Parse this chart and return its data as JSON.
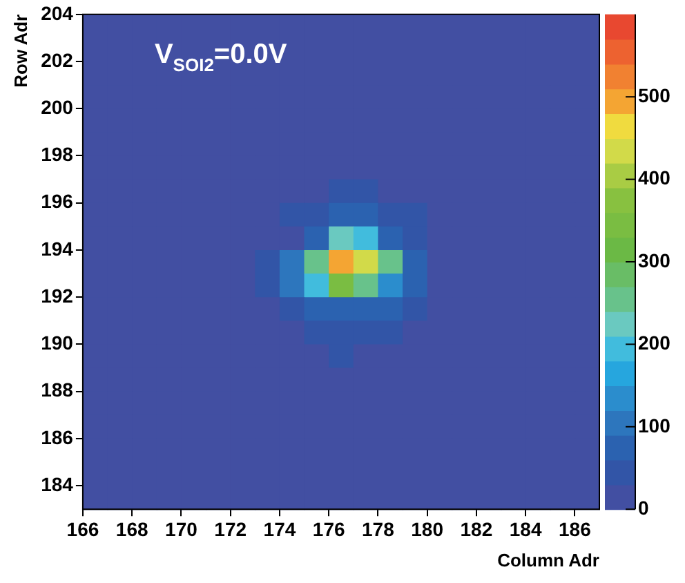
{
  "chart_data": {
    "type": "heatmap",
    "xlabel": "Column Adr",
    "ylabel": "Row Adr",
    "annotations": [
      "V$_{SOI2}$=0.0V"
    ],
    "x": [
      166.5,
      167.5,
      168.5,
      169.5,
      170.5,
      171.5,
      172.5,
      173.5,
      174.5,
      175.5,
      176.5,
      177.5,
      178.5,
      179.5,
      180.5,
      181.5,
      182.5,
      183.5,
      184.5,
      185.5,
      186.5
    ],
    "y": [
      203.5,
      202.5,
      201.5,
      200.5,
      199.5,
      198.5,
      197.5,
      196.5,
      195.5,
      194.5,
      193.5,
      192.5,
      191.5,
      190.5,
      189.5,
      188.5,
      187.5,
      186.5,
      185.5,
      184.5,
      183.5
    ],
    "xlim": [
      166,
      187
    ],
    "xticks": [
      166,
      168,
      170,
      172,
      174,
      176,
      178,
      180,
      182,
      184,
      186
    ],
    "ylim": [
      183,
      204
    ],
    "yticks": [
      184,
      186,
      188,
      190,
      192,
      194,
      196,
      198,
      200,
      202,
      204
    ],
    "clim": [
      0,
      600
    ],
    "cticks": [
      0,
      100,
      200,
      300,
      400,
      500
    ],
    "cells": [
      [
        0,
        0,
        0,
        0,
        0,
        0,
        0,
        0,
        0,
        0,
        0,
        0,
        0,
        0,
        0,
        0,
        0,
        0,
        0,
        0,
        0
      ],
      [
        0,
        0,
        0,
        0,
        0,
        0,
        0,
        0,
        0,
        0,
        0,
        0,
        0,
        0,
        0,
        0,
        0,
        0,
        0,
        0,
        0
      ],
      [
        0,
        0,
        0,
        0,
        0,
        0,
        0,
        0,
        0,
        0,
        0,
        0,
        0,
        0,
        0,
        0,
        0,
        0,
        0,
        0,
        0
      ],
      [
        0,
        0,
        0,
        0,
        0,
        0,
        0,
        0,
        0,
        0,
        0,
        0,
        0,
        0,
        0,
        0,
        0,
        0,
        0,
        0,
        0
      ],
      [
        0,
        0,
        0,
        0,
        0,
        0,
        0,
        0,
        0,
        0,
        0,
        0,
        0,
        0,
        0,
        0,
        0,
        0,
        0,
        0,
        0
      ],
      [
        0,
        0,
        0,
        0,
        0,
        0,
        0,
        0,
        0,
        0,
        0,
        0,
        0,
        0,
        0,
        0,
        0,
        0,
        0,
        0,
        0
      ],
      [
        0,
        0,
        0,
        0,
        0,
        0,
        0,
        0,
        0,
        0,
        0,
        0,
        0,
        0,
        0,
        0,
        0,
        0,
        0,
        0,
        0
      ],
      [
        0,
        0,
        0,
        0,
        0,
        0,
        0,
        0,
        0,
        0,
        40,
        40,
        0,
        0,
        0,
        0,
        0,
        0,
        0,
        0,
        0
      ],
      [
        0,
        0,
        0,
        0,
        0,
        0,
        0,
        0,
        40,
        40,
        80,
        80,
        40,
        40,
        0,
        0,
        0,
        0,
        0,
        0,
        0
      ],
      [
        0,
        0,
        0,
        0,
        0,
        0,
        0,
        0,
        0,
        80,
        220,
        180,
        80,
        50,
        0,
        0,
        0,
        0,
        0,
        0,
        0
      ],
      [
        0,
        0,
        0,
        0,
        0,
        0,
        0,
        40,
        90,
        240,
        500,
        430,
        260,
        80,
        0,
        0,
        0,
        0,
        0,
        0,
        0
      ],
      [
        0,
        0,
        0,
        0,
        0,
        0,
        0,
        40,
        90,
        180,
        340,
        250,
        140,
        70,
        0,
        0,
        0,
        0,
        0,
        0,
        0
      ],
      [
        0,
        0,
        0,
        0,
        0,
        0,
        0,
        0,
        40,
        80,
        60,
        60,
        80,
        40,
        0,
        0,
        0,
        0,
        0,
        0,
        0
      ],
      [
        0,
        0,
        0,
        0,
        0,
        0,
        0,
        0,
        0,
        40,
        40,
        40,
        40,
        0,
        0,
        0,
        0,
        0,
        0,
        0,
        0
      ],
      [
        0,
        0,
        0,
        0,
        0,
        0,
        0,
        0,
        0,
        0,
        40,
        0,
        0,
        0,
        0,
        0,
        0,
        0,
        0,
        0,
        0
      ],
      [
        0,
        0,
        0,
        0,
        0,
        0,
        0,
        0,
        0,
        0,
        0,
        0,
        0,
        0,
        0,
        0,
        0,
        0,
        0,
        0,
        0
      ],
      [
        0,
        0,
        0,
        0,
        0,
        0,
        0,
        0,
        0,
        0,
        0,
        0,
        0,
        0,
        0,
        0,
        0,
        0,
        0,
        0,
        0
      ],
      [
        0,
        0,
        0,
        0,
        0,
        0,
        0,
        0,
        0,
        0,
        0,
        0,
        0,
        0,
        0,
        0,
        0,
        0,
        0,
        0,
        0
      ],
      [
        0,
        0,
        0,
        0,
        0,
        0,
        0,
        0,
        0,
        0,
        0,
        0,
        0,
        0,
        0,
        0,
        0,
        0,
        0,
        0,
        0
      ],
      [
        0,
        0,
        0,
        0,
        0,
        0,
        0,
        0,
        0,
        0,
        0,
        0,
        0,
        0,
        0,
        0,
        0,
        0,
        0,
        0,
        0
      ],
      [
        0,
        0,
        0,
        0,
        0,
        0,
        0,
        0,
        0,
        0,
        0,
        0,
        0,
        0,
        0,
        0,
        0,
        0,
        0,
        0,
        0
      ]
    ]
  }
}
